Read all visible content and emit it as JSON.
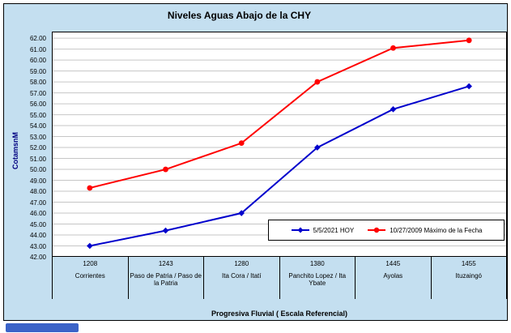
{
  "chart_data": {
    "type": "line",
    "title": "Niveles Aguas Abajo de la CHY",
    "ylabel": "CotamsnM",
    "xlabel": "Progresiva Fluvial ( Escala Referencial)",
    "ylim": [
      42.0,
      62.0
    ],
    "ytick_step": 1.0,
    "grid": true,
    "legend_position": "inside-bottom-right",
    "bg_color": "#C4DFF0",
    "plot_bg": "#FFFFFF",
    "grid_color": "#C6C6C6",
    "categories_top": [
      "1208",
      "1243",
      "1280",
      "1380",
      "1445",
      "1455"
    ],
    "categories_bottom": [
      "Corrientes",
      "Paso de Patria / Paso de la Patria",
      "Ita Cora / Itatí",
      "Panchito Lopez / Ita Ybate",
      "Ayolas",
      "Ituzaingó"
    ],
    "series": [
      {
        "name": "5/5/2021 HOY",
        "color": "#0000CC",
        "marker": "diamond",
        "values": [
          43.0,
          44.4,
          46.0,
          52.0,
          55.5,
          57.6
        ]
      },
      {
        "name": "10/27/2009 Máximo de la Fecha",
        "color": "#FF0000",
        "marker": "circle",
        "values": [
          48.3,
          50.0,
          52.4,
          58.0,
          61.1,
          61.8
        ]
      }
    ]
  }
}
